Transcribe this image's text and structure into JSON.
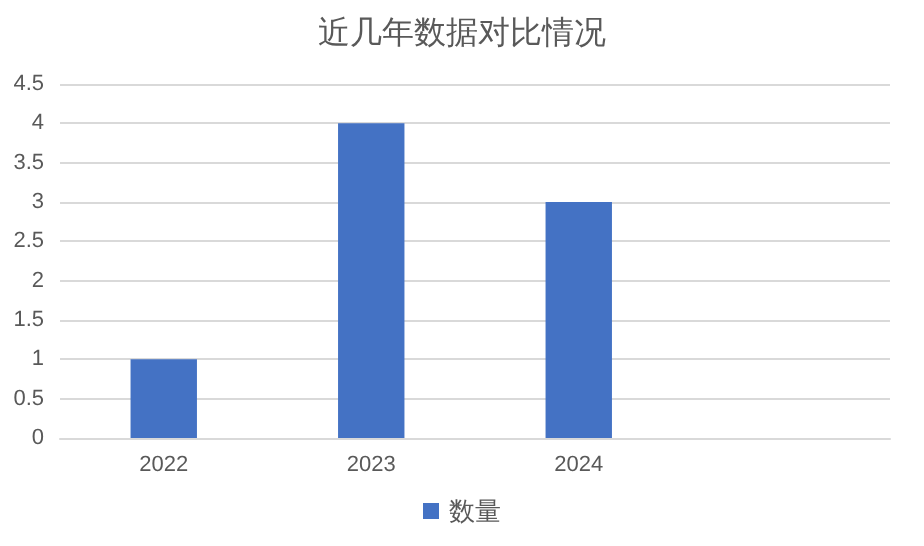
{
  "chart_data": {
    "type": "bar",
    "title": "近几年数据对比情况",
    "categories": [
      "2022",
      "2023",
      "2024",
      null
    ],
    "series": [
      {
        "name": "数量",
        "color": "#4472c4",
        "values": [
          1,
          4,
          3,
          null
        ]
      }
    ],
    "ylim": [
      0,
      4.5
    ],
    "yticks": [
      0,
      0.5,
      1,
      1.5,
      2,
      2.5,
      3,
      3.5,
      4,
      4.5
    ],
    "grid": "y",
    "legend": "bottom"
  }
}
